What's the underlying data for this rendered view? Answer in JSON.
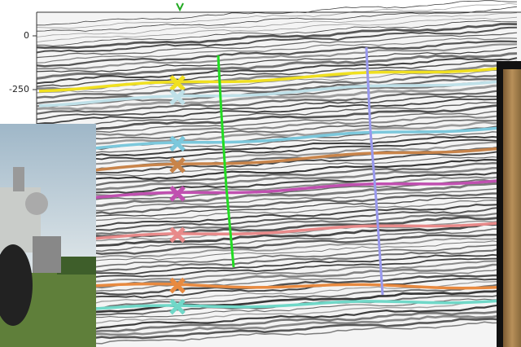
{
  "axis": {
    "y_labels": [
      "0",
      "-250"
    ]
  }
}
